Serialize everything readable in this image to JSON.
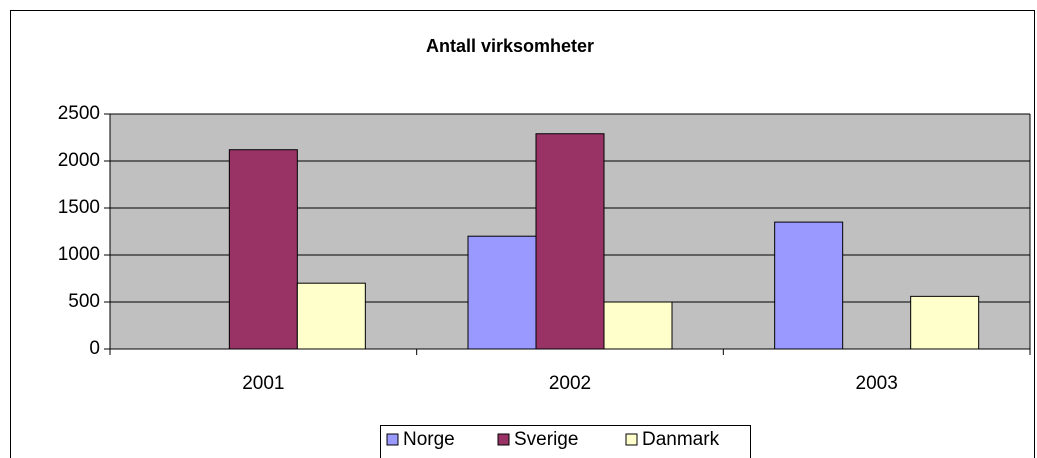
{
  "chart_data": {
    "type": "bar",
    "title": "Antall virksomheter",
    "categories": [
      "2001",
      "2002",
      "2003"
    ],
    "series": [
      {
        "name": "Norge",
        "color": "#9999ff",
        "values": [
          null,
          1200,
          1350
        ]
      },
      {
        "name": "Sverige",
        "color": "#993366",
        "values": [
          2120,
          2290,
          null
        ]
      },
      {
        "name": "Danmark",
        "color": "#ffffcc",
        "values": [
          700,
          500,
          560
        ]
      }
    ],
    "ylim": [
      0,
      2500
    ],
    "yticks": [
      0,
      500,
      1000,
      1500,
      2000,
      2500
    ],
    "grid": true,
    "plot_background": "#c0c0c0",
    "legend": "bottom"
  }
}
